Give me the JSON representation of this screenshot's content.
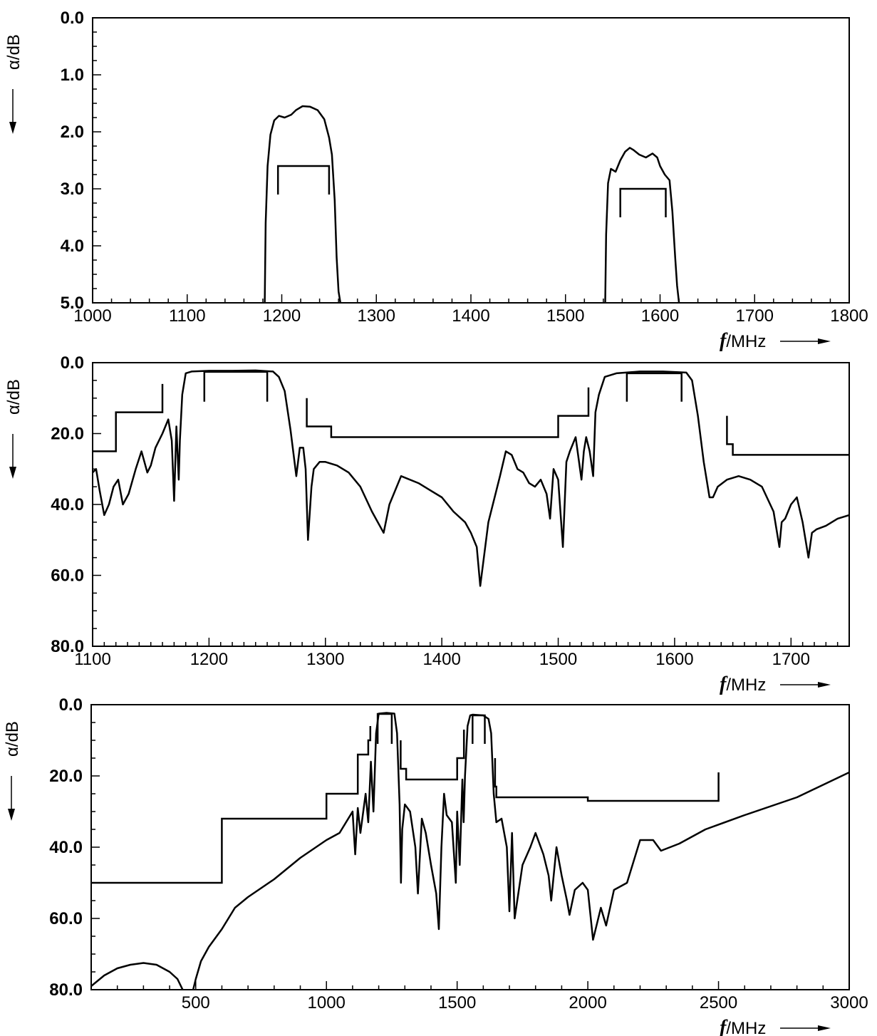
{
  "chart_data": [
    {
      "type": "line",
      "title": "",
      "xlabel": "f/MHz",
      "ylabel": "α/dB",
      "xlim": [
        1000,
        1800
      ],
      "ylim": [
        0,
        5
      ],
      "y_inverted": true,
      "grid": false,
      "x_ticks": [
        1000,
        1100,
        1200,
        1300,
        1400,
        1500,
        1600,
        1700,
        1800
      ],
      "x_tick_labels": [
        "1000",
        "1100",
        "1200",
        "1300",
        "1400",
        "1500",
        "1600",
        "1700",
        "1800"
      ],
      "y_ticks": [
        0,
        1,
        2,
        3,
        4,
        5
      ],
      "y_tick_labels": [
        "0.0",
        "1.0",
        "2.0",
        "3.0",
        "4.0",
        "5.0"
      ],
      "x_minor_step": 20,
      "y_minor_step": 0.25,
      "series": [
        {
          "x": [
            1182,
            1183,
            1185,
            1188,
            1192,
            1197,
            1203,
            1210,
            1215,
            1222,
            1230,
            1238,
            1245,
            1250,
            1253,
            1256,
            1258,
            1260,
            1262
          ],
          "y": [
            5.0,
            3.6,
            2.6,
            2.05,
            1.8,
            1.72,
            1.75,
            1.7,
            1.62,
            1.55,
            1.56,
            1.62,
            1.78,
            2.1,
            2.4,
            3.2,
            4.2,
            4.8,
            5.0
          ]
        },
        {
          "x": [
            1542,
            1543,
            1545,
            1548,
            1553,
            1558,
            1563,
            1568,
            1572,
            1578,
            1585,
            1592,
            1597,
            1600,
            1605,
            1610,
            1613,
            1616,
            1618,
            1620
          ],
          "y": [
            5.0,
            3.8,
            2.9,
            2.65,
            2.7,
            2.5,
            2.35,
            2.28,
            2.32,
            2.4,
            2.45,
            2.38,
            2.45,
            2.6,
            2.75,
            2.85,
            3.4,
            4.2,
            4.7,
            5.0
          ]
        }
      ],
      "mask": [
        {
          "x": [
            1196,
            1196,
            1250,
            1250
          ],
          "y": [
            3.1,
            2.6,
            2.6,
            3.1
          ]
        },
        {
          "x": [
            1558,
            1558,
            1606,
            1606
          ],
          "y": [
            3.5,
            3.0,
            3.0,
            3.5
          ]
        }
      ]
    },
    {
      "type": "line",
      "title": "",
      "xlabel": "f/MHz",
      "ylabel": "α/dB",
      "xlim": [
        1100,
        1750
      ],
      "ylim": [
        0,
        80
      ],
      "y_inverted": true,
      "grid": false,
      "x_ticks": [
        1100,
        1200,
        1300,
        1400,
        1500,
        1600,
        1700
      ],
      "x_tick_labels": [
        "1100",
        "1200",
        "1300",
        "1400",
        "1500",
        "1600",
        "1700"
      ],
      "y_ticks": [
        0,
        20,
        40,
        60,
        80
      ],
      "y_tick_labels": [
        "0.0",
        "20.0",
        "40.0",
        "60.0",
        "80.0"
      ],
      "x_minor_step": 10,
      "y_minor_step": 5,
      "series": [
        {
          "x": [
            1100,
            1103,
            1106,
            1110,
            1114,
            1118,
            1122,
            1126,
            1131,
            1137,
            1142,
            1147,
            1150,
            1154,
            1160,
            1165,
            1168,
            1170,
            1172,
            1174,
            1175,
            1177,
            1180,
            1185,
            1200,
            1220,
            1240,
            1255,
            1260,
            1265,
            1270,
            1275,
            1278,
            1281,
            1283,
            1285,
            1288,
            1290,
            1295,
            1300,
            1310,
            1320,
            1330,
            1340,
            1350,
            1355,
            1365,
            1380,
            1390,
            1400,
            1410,
            1420,
            1425,
            1430,
            1433,
            1440,
            1450,
            1455,
            1460,
            1465,
            1470,
            1475,
            1480,
            1485,
            1490,
            1493,
            1496,
            1500,
            1504,
            1507,
            1510,
            1515,
            1520,
            1522,
            1524,
            1527,
            1530,
            1532,
            1535,
            1540,
            1550,
            1570,
            1590,
            1610,
            1615,
            1620,
            1625,
            1630,
            1633,
            1637,
            1645,
            1655,
            1665,
            1675,
            1685,
            1690,
            1692,
            1695,
            1700,
            1705,
            1710,
            1715,
            1718,
            1722,
            1730,
            1740,
            1750
          ],
          "y": [
            31,
            30,
            36,
            43,
            40,
            35,
            33,
            40,
            37,
            30,
            25,
            31,
            29,
            24,
            20,
            16,
            22,
            39,
            18,
            33,
            22,
            9,
            3,
            2.5,
            2.3,
            2.3,
            2.2,
            2.5,
            4,
            8,
            19,
            32,
            24,
            24,
            30,
            50,
            35,
            30,
            28,
            28,
            29,
            31,
            35,
            42,
            48,
            40,
            32,
            34,
            36,
            38,
            42,
            45,
            48,
            52,
            63,
            45,
            32,
            25,
            26,
            30,
            31,
            34,
            35,
            33,
            37,
            44,
            30,
            33,
            52,
            28,
            25,
            21,
            33,
            25,
            21,
            25,
            32,
            14,
            9,
            4,
            3,
            2.5,
            2.5,
            2.8,
            5,
            15,
            28,
            38,
            38,
            35,
            33,
            32,
            33,
            35,
            42,
            52,
            45,
            44,
            40,
            38,
            45,
            55,
            48,
            47,
            46,
            44,
            43
          ]
        }
      ],
      "mask": [
        {
          "x": [
            1100,
            1120,
            1120,
            1160,
            1160
          ],
          "y": [
            25,
            25,
            14,
            14,
            6
          ]
        },
        {
          "x": [
            1196,
            1196,
            1250,
            1250
          ],
          "y": [
            11,
            2.6,
            2.6,
            11
          ]
        },
        {
          "x": [
            1284,
            1284,
            1305,
            1305,
            1500,
            1500,
            1526,
            1526
          ],
          "y": [
            10,
            18,
            18,
            21,
            21,
            15,
            15,
            7
          ]
        },
        {
          "x": [
            1559,
            1559,
            1606,
            1606
          ],
          "y": [
            11,
            3.0,
            3.0,
            11
          ]
        },
        {
          "x": [
            1645,
            1645,
            1650,
            1650,
            1750
          ],
          "y": [
            15,
            23,
            23,
            26,
            26
          ]
        }
      ]
    },
    {
      "type": "line",
      "title": "",
      "xlabel": "f/MHz",
      "ylabel": "α/dB",
      "xlim": [
        100,
        3000
      ],
      "ylim": [
        0,
        80
      ],
      "y_inverted": true,
      "grid": false,
      "x_ticks": [
        500,
        1000,
        1500,
        2000,
        2500,
        3000
      ],
      "x_tick_labels": [
        "500",
        "1000",
        "1500",
        "2000",
        "2500",
        "3000"
      ],
      "y_ticks": [
        0,
        20,
        40,
        60,
        80
      ],
      "y_tick_labels": [
        "0.0",
        "20.0",
        "40.0",
        "60.0",
        "80.0"
      ],
      "x_minor_step": 100,
      "y_minor_step": 5,
      "series": [
        {
          "x": [
            100,
            150,
            200,
            250,
            300,
            350,
            400,
            430,
            450
          ],
          "y": [
            79,
            76,
            74,
            73,
            72.5,
            73,
            75,
            77,
            80
          ]
        },
        {
          "x": [
            490,
            500,
            520,
            550,
            600,
            650,
            700,
            800,
            900,
            1000,
            1050,
            1100,
            1110,
            1120,
            1130,
            1150,
            1160,
            1170,
            1180,
            1190,
            1200,
            1230,
            1260,
            1270,
            1280,
            1285,
            1290,
            1300,
            1320,
            1340,
            1350,
            1365,
            1380,
            1400,
            1420,
            1430,
            1440,
            1450,
            1460,
            1480,
            1495,
            1500,
            1510,
            1520,
            1525,
            1530,
            1540,
            1550,
            1560,
            1600,
            1620,
            1630,
            1640,
            1650,
            1670,
            1690,
            1700,
            1710,
            1720,
            1750,
            1780,
            1800,
            1830,
            1850,
            1860,
            1880,
            1900,
            1920,
            1930,
            1950,
            1980,
            2000,
            2020,
            2050,
            2070,
            2100,
            2150,
            2200,
            2250,
            2280,
            2350,
            2450,
            2600,
            2800,
            3000
          ],
          "y": [
            80,
            77,
            72,
            68,
            63,
            57,
            54,
            49,
            43,
            38,
            36,
            30,
            42,
            29,
            36,
            25,
            33,
            16,
            30,
            8,
            2.5,
            2.3,
            2.5,
            8,
            28,
            50,
            35,
            28,
            30,
            40,
            53,
            32,
            36,
            45,
            53,
            63,
            40,
            25,
            31,
            33,
            50,
            30,
            45,
            21,
            33,
            20,
            6,
            3,
            2.8,
            3,
            4,
            8,
            25,
            33,
            32,
            40,
            58,
            36,
            60,
            45,
            40,
            36,
            42,
            48,
            55,
            40,
            48,
            55,
            59,
            52,
            50,
            52,
            66,
            57,
            62,
            52,
            50,
            38,
            38,
            41,
            39,
            35,
            31,
            26,
            19
          ]
        }
      ],
      "mask": [
        {
          "x": [
            100,
            600,
            600,
            1000,
            1000,
            1120,
            1120,
            1160,
            1160,
            1168,
            1168
          ],
          "y": [
            50,
            50,
            32,
            32,
            25,
            25,
            14,
            14,
            10,
            10,
            6
          ]
        },
        {
          "x": [
            1196,
            1196,
            1250,
            1250
          ],
          "y": [
            11,
            2.6,
            2.6,
            11
          ]
        },
        {
          "x": [
            1284,
            1284,
            1305,
            1305,
            1500,
            1500,
            1526,
            1526
          ],
          "y": [
            10,
            18,
            18,
            21,
            21,
            15,
            15,
            7
          ]
        },
        {
          "x": [
            1559,
            1559,
            1606,
            1606
          ],
          "y": [
            11,
            3.0,
            3.0,
            11
          ]
        },
        {
          "x": [
            1645,
            1645,
            1650,
            1650,
            2000,
            2000,
            2500,
            2500
          ],
          "y": [
            15,
            23,
            23,
            26,
            26,
            27,
            27,
            19
          ]
        }
      ]
    }
  ]
}
